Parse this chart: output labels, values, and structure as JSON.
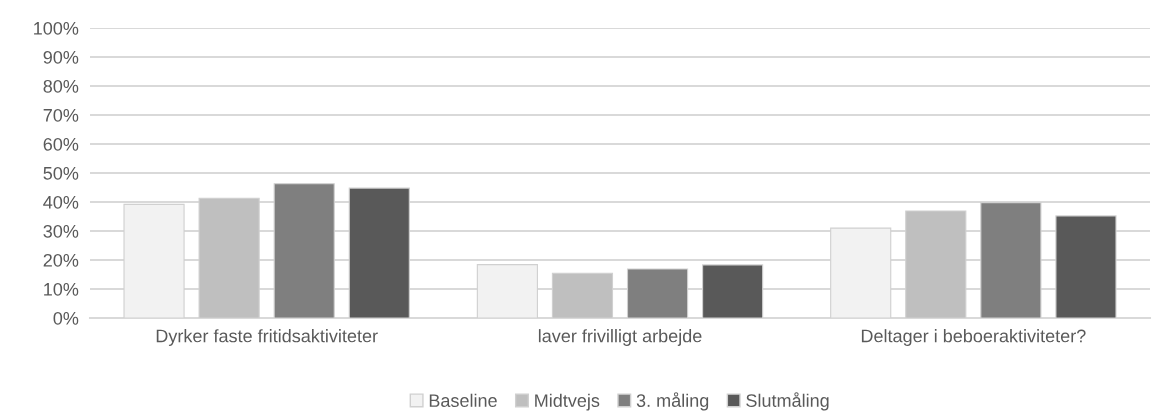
{
  "chart_data": {
    "type": "bar",
    "categories": [
      "Dyrker faste fritidsaktiviteter",
      "laver frivilligt arbejde",
      "Deltager i beboeraktiviteter?"
    ],
    "series": [
      {
        "name": "Baseline",
        "color": "#f2f2f2",
        "values": [
          39.2,
          18.4,
          31.0
        ]
      },
      {
        "name": "Midtvejs",
        "color": "#bfbfbf",
        "values": [
          41.3,
          15.4,
          36.9
        ]
      },
      {
        "name": "3. måling",
        "color": "#7f7f7f",
        "values": [
          46.3,
          16.9,
          39.8
        ]
      },
      {
        "name": "Slutmåling",
        "color": "#595959",
        "values": [
          44.8,
          18.3,
          35.2
        ]
      }
    ],
    "ylim": [
      0,
      100
    ],
    "yticks": [
      {
        "value": 0,
        "label": "0%"
      },
      {
        "value": 10,
        "label": "10%"
      },
      {
        "value": 20,
        "label": "20%"
      },
      {
        "value": 30,
        "label": "30%"
      },
      {
        "value": 40,
        "label": "40%"
      },
      {
        "value": 50,
        "label": "50%"
      },
      {
        "value": 60,
        "label": "60%"
      },
      {
        "value": 70,
        "label": "70%"
      },
      {
        "value": 80,
        "label": "80%"
      },
      {
        "value": 90,
        "label": "90%"
      },
      {
        "value": 100,
        "label": "100%"
      }
    ],
    "grid": "y",
    "legend": "bottom"
  }
}
